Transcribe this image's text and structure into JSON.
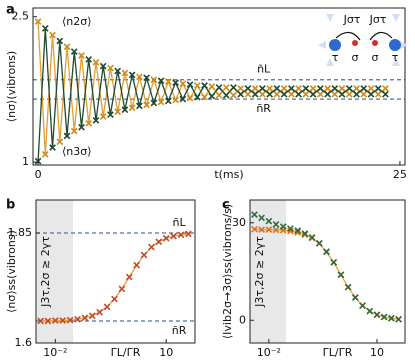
{
  "chart_data": [
    {
      "type": "line",
      "panel_label": "a",
      "x_label": "t(ms)",
      "y_label": "⟨nσ⟩(vibrons)",
      "x": [
        0,
        0.5,
        1,
        1.5,
        2,
        2.5,
        3,
        3.5,
        4,
        4.5,
        5,
        5.5,
        6,
        6.5,
        7,
        7.5,
        8,
        8.5,
        9,
        9.5,
        10,
        10.5,
        11,
        11.5,
        12,
        12.5,
        13,
        13.5,
        14,
        14.5,
        15,
        15.5,
        16,
        16.5,
        17,
        17.5,
        18,
        18.5,
        19,
        19.5,
        20,
        20.5,
        21,
        21.5,
        22,
        22.5,
        23,
        23.5,
        24
      ],
      "series": [
        {
          "name": "⟨n2σ⟩",
          "color": "#e0a030",
          "marker_color": "#d08a1a",
          "values": [
            2.45,
            1.08,
            2.31,
            1.21,
            2.19,
            1.32,
            2.1,
            1.4,
            2.03,
            1.47,
            1.97,
            1.52,
            1.92,
            1.56,
            1.88,
            1.59,
            1.85,
            1.62,
            1.83,
            1.64,
            1.81,
            1.66,
            1.79,
            1.67,
            1.78,
            1.69,
            1.77,
            1.69,
            1.76,
            1.7,
            1.76,
            1.7,
            1.76,
            1.7,
            1.76,
            1.7,
            1.76,
            1.7,
            1.76,
            1.7,
            1.76,
            1.7,
            1.76,
            1.7,
            1.76,
            1.7,
            1.76,
            1.7,
            1.76
          ]
        },
        {
          "name": "⟨n3σ⟩",
          "color": "#1f4a2e",
          "marker_color": "#1f4a2e",
          "values": [
            1.01,
            2.38,
            1.15,
            2.25,
            1.27,
            2.14,
            1.36,
            2.06,
            1.43,
            1.99,
            1.49,
            1.94,
            1.54,
            1.9,
            1.58,
            1.87,
            1.61,
            1.84,
            1.63,
            1.82,
            1.65,
            1.8,
            1.67,
            1.79,
            1.68,
            1.77,
            1.69,
            1.77,
            1.7,
            1.76,
            1.7,
            1.76,
            1.7,
            1.76,
            1.7,
            1.76,
            1.7,
            1.76,
            1.7,
            1.76,
            1.7,
            1.76,
            1.7,
            1.76,
            1.7,
            1.76,
            1.7,
            1.76,
            1.7
          ]
        }
      ],
      "reference_lines": [
        {
          "label": "n̄L",
          "value": 1.85,
          "color": "#4f6fb0"
        },
        {
          "label": "n̄R",
          "value": 1.65,
          "color": "#4f6fb0"
        }
      ],
      "xlim": [
        -0.35,
        25.35
      ],
      "ylim": [
        0.97,
        2.59
      ],
      "xticks": [
        0,
        25
      ],
      "yticks": [
        1,
        2.5
      ],
      "inset": {
        "couplings": [
          "Jστ",
          "Jστ"
        ],
        "sites": [
          "τ",
          "σ",
          "σ",
          "τ"
        ]
      }
    },
    {
      "type": "line",
      "panel_label": "b",
      "x_label": "ΓL/ΓR",
      "y_label": "⟨nσ⟩ss(vibrons)",
      "x_scale": "log",
      "annotation": "J3τ,2σ ≳ 2γτ",
      "shaded_region": [
        0.003,
        0.03
      ],
      "x": [
        0.004,
        0.0063,
        0.01,
        0.0158,
        0.0251,
        0.0398,
        0.0631,
        0.1,
        0.158,
        0.251,
        0.398,
        0.631,
        1,
        1.58,
        2.51,
        3.98,
        6.31,
        10,
        15.8,
        25.1,
        39.8
      ],
      "series": [
        {
          "color": "#f0a030",
          "marker_color": "#c0492b",
          "values": [
            1.65,
            1.65,
            1.651,
            1.651,
            1.652,
            1.654,
            1.657,
            1.662,
            1.67,
            1.682,
            1.7,
            1.723,
            1.75,
            1.777,
            1.8,
            1.818,
            1.83,
            1.838,
            1.843,
            1.846,
            1.848
          ]
        }
      ],
      "reference_lines": [
        {
          "label": "n̄L",
          "value": 1.85,
          "color": "#4f6fb0"
        },
        {
          "label": "n̄R",
          "value": 1.65,
          "color": "#4f6fb0"
        }
      ],
      "xlim": [
        0.003,
        60
      ],
      "ylim": [
        1.6,
        1.925
      ],
      "xticks": [
        {
          "value": 0.01,
          "label": "10⁻²"
        },
        10
      ],
      "yticks": [
        1.6,
        1.85
      ]
    },
    {
      "type": "line",
      "panel_label": "c",
      "x_label": "ΓL/ΓR",
      "y_label": "⟨Ivib2σ→3σ⟩ss(vibrons/s)",
      "x_scale": "log",
      "annotation": "J3τ,2σ ≳ 2γτ",
      "shaded_region": [
        0.003,
        0.03
      ],
      "x": [
        0.004,
        0.0063,
        0.01,
        0.0158,
        0.0251,
        0.0398,
        0.0631,
        0.1,
        0.158,
        0.251,
        0.398,
        0.631,
        1,
        1.58,
        2.51,
        3.98,
        6.31,
        10,
        15.8,
        25.1,
        39.8
      ],
      "series": [
        {
          "color": "#f0a030",
          "marker_color": "#e07020",
          "values": [
            28.0,
            27.9,
            27.9,
            27.8,
            27.7,
            27.4,
            27.0,
            26.3,
            25.3,
            23.6,
            21.0,
            17.8,
            14.0,
            10.2,
            7.0,
            4.5,
            2.8,
            1.7,
            1.0,
            0.6,
            0.3
          ]
        },
        {
          "color": "#2e6b3c",
          "marker_color": "#2e6b3c",
          "line": false,
          "values": [
            32.5,
            31.5,
            30.5,
            29.5,
            28.8,
            28.2,
            27.6,
            26.7,
            25.5,
            23.7,
            21.1,
            17.8,
            14.0,
            10.2,
            7.0,
            4.5,
            2.8,
            1.7,
            1.0,
            0.6,
            0.3
          ]
        }
      ],
      "xlim": [
        0.003,
        60
      ],
      "ylim": [
        -7,
        37
      ],
      "xticks": [
        {
          "value": 0.01,
          "label": "10⁻²"
        },
        10
      ],
      "yticks": [
        0,
        30
      ]
    }
  ]
}
